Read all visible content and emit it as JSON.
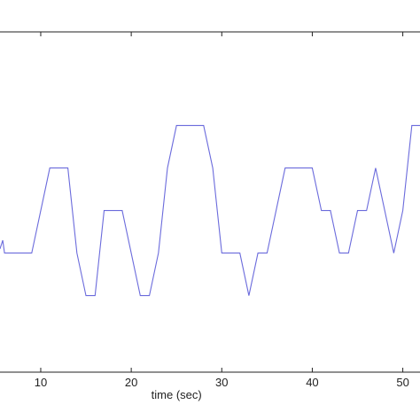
{
  "chart_data": {
    "type": "line",
    "xlabel": "time (sec)",
    "ylabel": "",
    "title": "",
    "grid": false,
    "xlim": [
      5.5,
      51.9
    ],
    "ylim": [
      0,
      8
    ],
    "xticks": [
      10,
      20,
      30,
      40,
      50
    ],
    "xtick_labels": [
      "10",
      "20",
      "30",
      "40",
      "50"
    ],
    "series": [
      {
        "color": "#6b6bdc",
        "x": [
          5.5,
          5.8,
          6.0,
          9.0,
          11.0,
          13.0,
          14.0,
          15.0,
          16.0,
          17.0,
          19.0,
          20.0,
          21.0,
          22.0,
          23.0,
          24.0,
          25.0,
          28.0,
          29.0,
          30.0,
          32.0,
          33.0,
          34.0,
          35.0,
          37.0,
          40.0,
          41.0,
          42.0,
          43.0,
          44.0,
          45.0,
          46.0,
          47.0,
          48.0,
          49.0,
          50.0,
          51.0,
          51.9
        ],
        "y": [
          2.9,
          3.1,
          2.8,
          2.8,
          4.8,
          4.8,
          2.8,
          1.8,
          1.8,
          3.8,
          3.8,
          2.8,
          1.8,
          1.8,
          2.8,
          4.8,
          5.8,
          5.8,
          4.8,
          2.8,
          2.8,
          1.8,
          2.8,
          2.8,
          4.8,
          4.8,
          3.8,
          3.8,
          2.8,
          2.8,
          3.8,
          3.8,
          4.8,
          3.8,
          2.8,
          3.8,
          5.8,
          5.8
        ]
      }
    ]
  }
}
